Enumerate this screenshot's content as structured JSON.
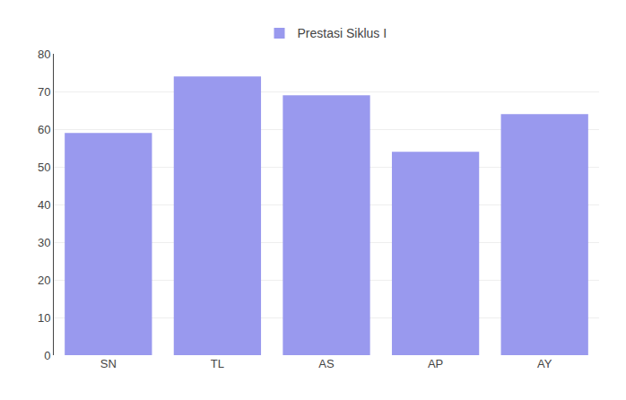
{
  "chart_data": {
    "type": "bar",
    "categories": [
      "SN",
      "TL",
      "AS",
      "AP",
      "AY"
    ],
    "series": [
      {
        "name": "Prestasi Siklus I",
        "color": "#9999ee",
        "values": [
          59,
          74,
          69,
          54,
          64
        ]
      }
    ],
    "ylim": [
      0,
      80
    ],
    "yticks": [
      0,
      10,
      20,
      30,
      40,
      50,
      60,
      70,
      80
    ],
    "grid": true,
    "legend": "top"
  }
}
